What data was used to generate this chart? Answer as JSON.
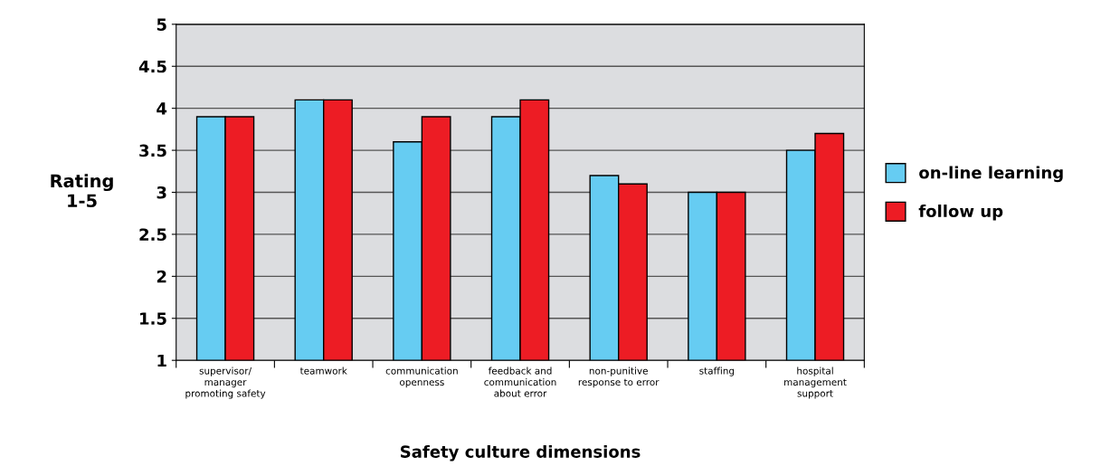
{
  "chart_data": {
    "type": "bar",
    "xlabel": "Safety culture dimensions",
    "ylabel": "Rating\n1-5",
    "categories": [
      "supervisor/\nmanager\npromoting safety",
      "teamwork",
      "communication\nopenness",
      "feedback and\ncommunication\nabout error",
      "non-punitive\nresponse to error",
      "staffing",
      "hospital\nmanagement\nsupport"
    ],
    "series": [
      {
        "name": "on-line learning",
        "color": "#66ccf2",
        "values": [
          3.9,
          4.1,
          3.6,
          3.9,
          3.2,
          3.0,
          3.5
        ]
      },
      {
        "name": "follow up",
        "color": "#ed1c24",
        "values": [
          3.9,
          4.1,
          3.9,
          4.1,
          3.1,
          3.0,
          3.7
        ]
      }
    ],
    "ylim": [
      1,
      5
    ],
    "yticks": [
      1,
      1.5,
      2,
      2.5,
      3,
      3.5,
      4,
      4.5,
      5
    ],
    "grid": "y",
    "legend": "right"
  }
}
